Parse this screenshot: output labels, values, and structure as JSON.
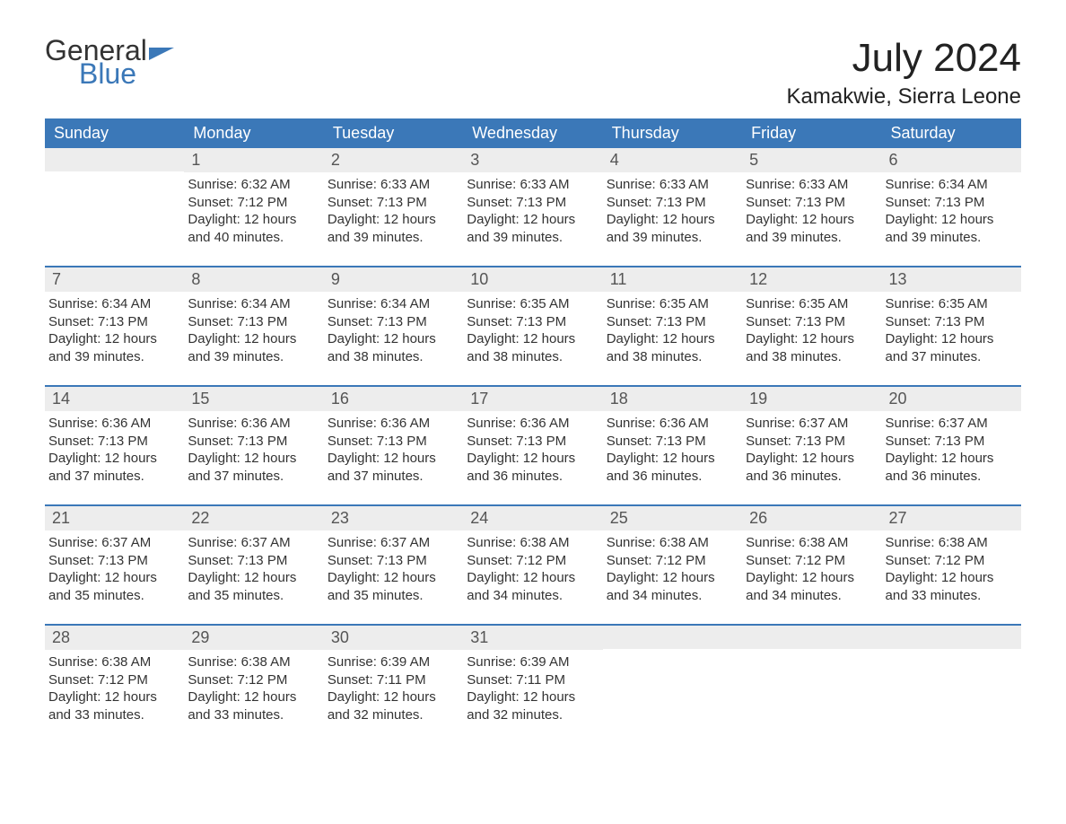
{
  "logo": {
    "word1": "General",
    "word2": "Blue",
    "flag_color": "#3b78b8",
    "text1_color": "#333333",
    "text2_color": "#3b78b8"
  },
  "header": {
    "month_title": "July 2024",
    "location": "Kamakwie, Sierra Leone"
  },
  "colors": {
    "header_bg": "#3b78b8",
    "header_text": "#ffffff",
    "daynum_bg": "#ededed",
    "week_border": "#3b78b8",
    "body_text": "#333333",
    "page_bg": "#ffffff"
  },
  "days_of_week": [
    "Sunday",
    "Monday",
    "Tuesday",
    "Wednesday",
    "Thursday",
    "Friday",
    "Saturday"
  ],
  "weeks": [
    [
      {
        "num": "",
        "sunrise": "",
        "sunset": "",
        "daylight": ""
      },
      {
        "num": "1",
        "sunrise": "Sunrise: 6:32 AM",
        "sunset": "Sunset: 7:12 PM",
        "daylight": "Daylight: 12 hours and 40 minutes."
      },
      {
        "num": "2",
        "sunrise": "Sunrise: 6:33 AM",
        "sunset": "Sunset: 7:13 PM",
        "daylight": "Daylight: 12 hours and 39 minutes."
      },
      {
        "num": "3",
        "sunrise": "Sunrise: 6:33 AM",
        "sunset": "Sunset: 7:13 PM",
        "daylight": "Daylight: 12 hours and 39 minutes."
      },
      {
        "num": "4",
        "sunrise": "Sunrise: 6:33 AM",
        "sunset": "Sunset: 7:13 PM",
        "daylight": "Daylight: 12 hours and 39 minutes."
      },
      {
        "num": "5",
        "sunrise": "Sunrise: 6:33 AM",
        "sunset": "Sunset: 7:13 PM",
        "daylight": "Daylight: 12 hours and 39 minutes."
      },
      {
        "num": "6",
        "sunrise": "Sunrise: 6:34 AM",
        "sunset": "Sunset: 7:13 PM",
        "daylight": "Daylight: 12 hours and 39 minutes."
      }
    ],
    [
      {
        "num": "7",
        "sunrise": "Sunrise: 6:34 AM",
        "sunset": "Sunset: 7:13 PM",
        "daylight": "Daylight: 12 hours and 39 minutes."
      },
      {
        "num": "8",
        "sunrise": "Sunrise: 6:34 AM",
        "sunset": "Sunset: 7:13 PM",
        "daylight": "Daylight: 12 hours and 39 minutes."
      },
      {
        "num": "9",
        "sunrise": "Sunrise: 6:34 AM",
        "sunset": "Sunset: 7:13 PM",
        "daylight": "Daylight: 12 hours and 38 minutes."
      },
      {
        "num": "10",
        "sunrise": "Sunrise: 6:35 AM",
        "sunset": "Sunset: 7:13 PM",
        "daylight": "Daylight: 12 hours and 38 minutes."
      },
      {
        "num": "11",
        "sunrise": "Sunrise: 6:35 AM",
        "sunset": "Sunset: 7:13 PM",
        "daylight": "Daylight: 12 hours and 38 minutes."
      },
      {
        "num": "12",
        "sunrise": "Sunrise: 6:35 AM",
        "sunset": "Sunset: 7:13 PM",
        "daylight": "Daylight: 12 hours and 38 minutes."
      },
      {
        "num": "13",
        "sunrise": "Sunrise: 6:35 AM",
        "sunset": "Sunset: 7:13 PM",
        "daylight": "Daylight: 12 hours and 37 minutes."
      }
    ],
    [
      {
        "num": "14",
        "sunrise": "Sunrise: 6:36 AM",
        "sunset": "Sunset: 7:13 PM",
        "daylight": "Daylight: 12 hours and 37 minutes."
      },
      {
        "num": "15",
        "sunrise": "Sunrise: 6:36 AM",
        "sunset": "Sunset: 7:13 PM",
        "daylight": "Daylight: 12 hours and 37 minutes."
      },
      {
        "num": "16",
        "sunrise": "Sunrise: 6:36 AM",
        "sunset": "Sunset: 7:13 PM",
        "daylight": "Daylight: 12 hours and 37 minutes."
      },
      {
        "num": "17",
        "sunrise": "Sunrise: 6:36 AM",
        "sunset": "Sunset: 7:13 PM",
        "daylight": "Daylight: 12 hours and 36 minutes."
      },
      {
        "num": "18",
        "sunrise": "Sunrise: 6:36 AM",
        "sunset": "Sunset: 7:13 PM",
        "daylight": "Daylight: 12 hours and 36 minutes."
      },
      {
        "num": "19",
        "sunrise": "Sunrise: 6:37 AM",
        "sunset": "Sunset: 7:13 PM",
        "daylight": "Daylight: 12 hours and 36 minutes."
      },
      {
        "num": "20",
        "sunrise": "Sunrise: 6:37 AM",
        "sunset": "Sunset: 7:13 PM",
        "daylight": "Daylight: 12 hours and 36 minutes."
      }
    ],
    [
      {
        "num": "21",
        "sunrise": "Sunrise: 6:37 AM",
        "sunset": "Sunset: 7:13 PM",
        "daylight": "Daylight: 12 hours and 35 minutes."
      },
      {
        "num": "22",
        "sunrise": "Sunrise: 6:37 AM",
        "sunset": "Sunset: 7:13 PM",
        "daylight": "Daylight: 12 hours and 35 minutes."
      },
      {
        "num": "23",
        "sunrise": "Sunrise: 6:37 AM",
        "sunset": "Sunset: 7:13 PM",
        "daylight": "Daylight: 12 hours and 35 minutes."
      },
      {
        "num": "24",
        "sunrise": "Sunrise: 6:38 AM",
        "sunset": "Sunset: 7:12 PM",
        "daylight": "Daylight: 12 hours and 34 minutes."
      },
      {
        "num": "25",
        "sunrise": "Sunrise: 6:38 AM",
        "sunset": "Sunset: 7:12 PM",
        "daylight": "Daylight: 12 hours and 34 minutes."
      },
      {
        "num": "26",
        "sunrise": "Sunrise: 6:38 AM",
        "sunset": "Sunset: 7:12 PM",
        "daylight": "Daylight: 12 hours and 34 minutes."
      },
      {
        "num": "27",
        "sunrise": "Sunrise: 6:38 AM",
        "sunset": "Sunset: 7:12 PM",
        "daylight": "Daylight: 12 hours and 33 minutes."
      }
    ],
    [
      {
        "num": "28",
        "sunrise": "Sunrise: 6:38 AM",
        "sunset": "Sunset: 7:12 PM",
        "daylight": "Daylight: 12 hours and 33 minutes."
      },
      {
        "num": "29",
        "sunrise": "Sunrise: 6:38 AM",
        "sunset": "Sunset: 7:12 PM",
        "daylight": "Daylight: 12 hours and 33 minutes."
      },
      {
        "num": "30",
        "sunrise": "Sunrise: 6:39 AM",
        "sunset": "Sunset: 7:11 PM",
        "daylight": "Daylight: 12 hours and 32 minutes."
      },
      {
        "num": "31",
        "sunrise": "Sunrise: 6:39 AM",
        "sunset": "Sunset: 7:11 PM",
        "daylight": "Daylight: 12 hours and 32 minutes."
      },
      {
        "num": "",
        "sunrise": "",
        "sunset": "",
        "daylight": ""
      },
      {
        "num": "",
        "sunrise": "",
        "sunset": "",
        "daylight": ""
      },
      {
        "num": "",
        "sunrise": "",
        "sunset": "",
        "daylight": ""
      }
    ]
  ]
}
